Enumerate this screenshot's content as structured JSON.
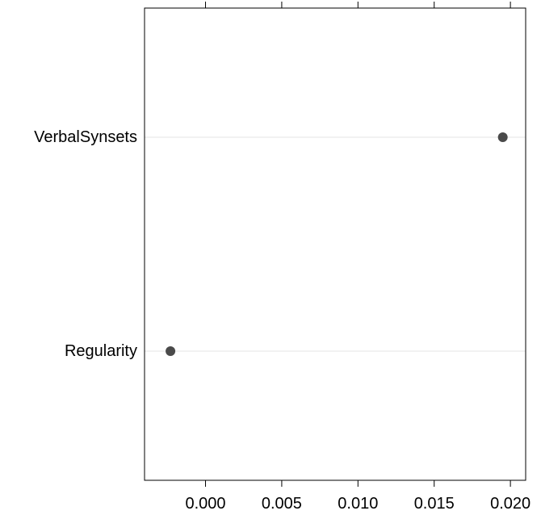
{
  "chart_data": {
    "type": "dotplot",
    "categories": [
      "VerbalSynsets",
      "Regularity"
    ],
    "values": [
      0.0195,
      -0.0023
    ],
    "xlim": [
      -0.004,
      0.021
    ],
    "x_ticks": [
      0.0,
      0.005,
      0.01,
      0.015,
      0.02
    ],
    "x_tick_labels": [
      "0.000",
      "0.005",
      "0.010",
      "0.015",
      "0.020"
    ],
    "grid": "horizontal reference lines per category",
    "colors": {
      "point": "#4a4a4a",
      "reference_line": "#e6e6e6",
      "frame": "#000000"
    }
  }
}
